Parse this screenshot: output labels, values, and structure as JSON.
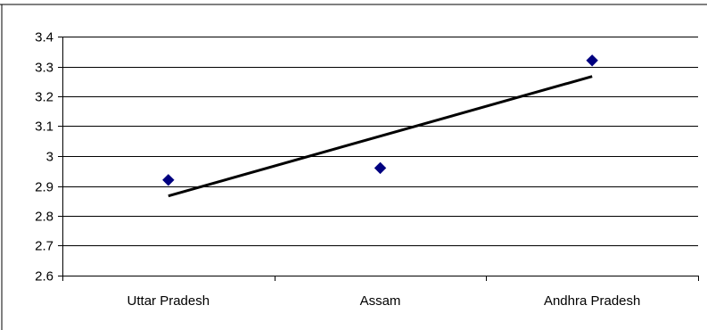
{
  "chart_data": {
    "type": "scatter",
    "categories": [
      "Uttar Pradesh",
      "Assam",
      "Andhra Pradesh"
    ],
    "series": [
      {
        "values": [
          2.92,
          2.96,
          3.32
        ],
        "marker": "diamond",
        "color": "#000080"
      }
    ],
    "trendline": {
      "type": "linear",
      "color": "#000000"
    },
    "title": "",
    "xlabel": "",
    "ylabel": "",
    "ylim": [
      2.6,
      3.4
    ],
    "yticks": [
      "2.6",
      "2.7",
      "2.8",
      "2.9",
      "3",
      "3.1",
      "3.2",
      "3.3",
      "3.4"
    ],
    "grid": true,
    "legend": "none"
  }
}
